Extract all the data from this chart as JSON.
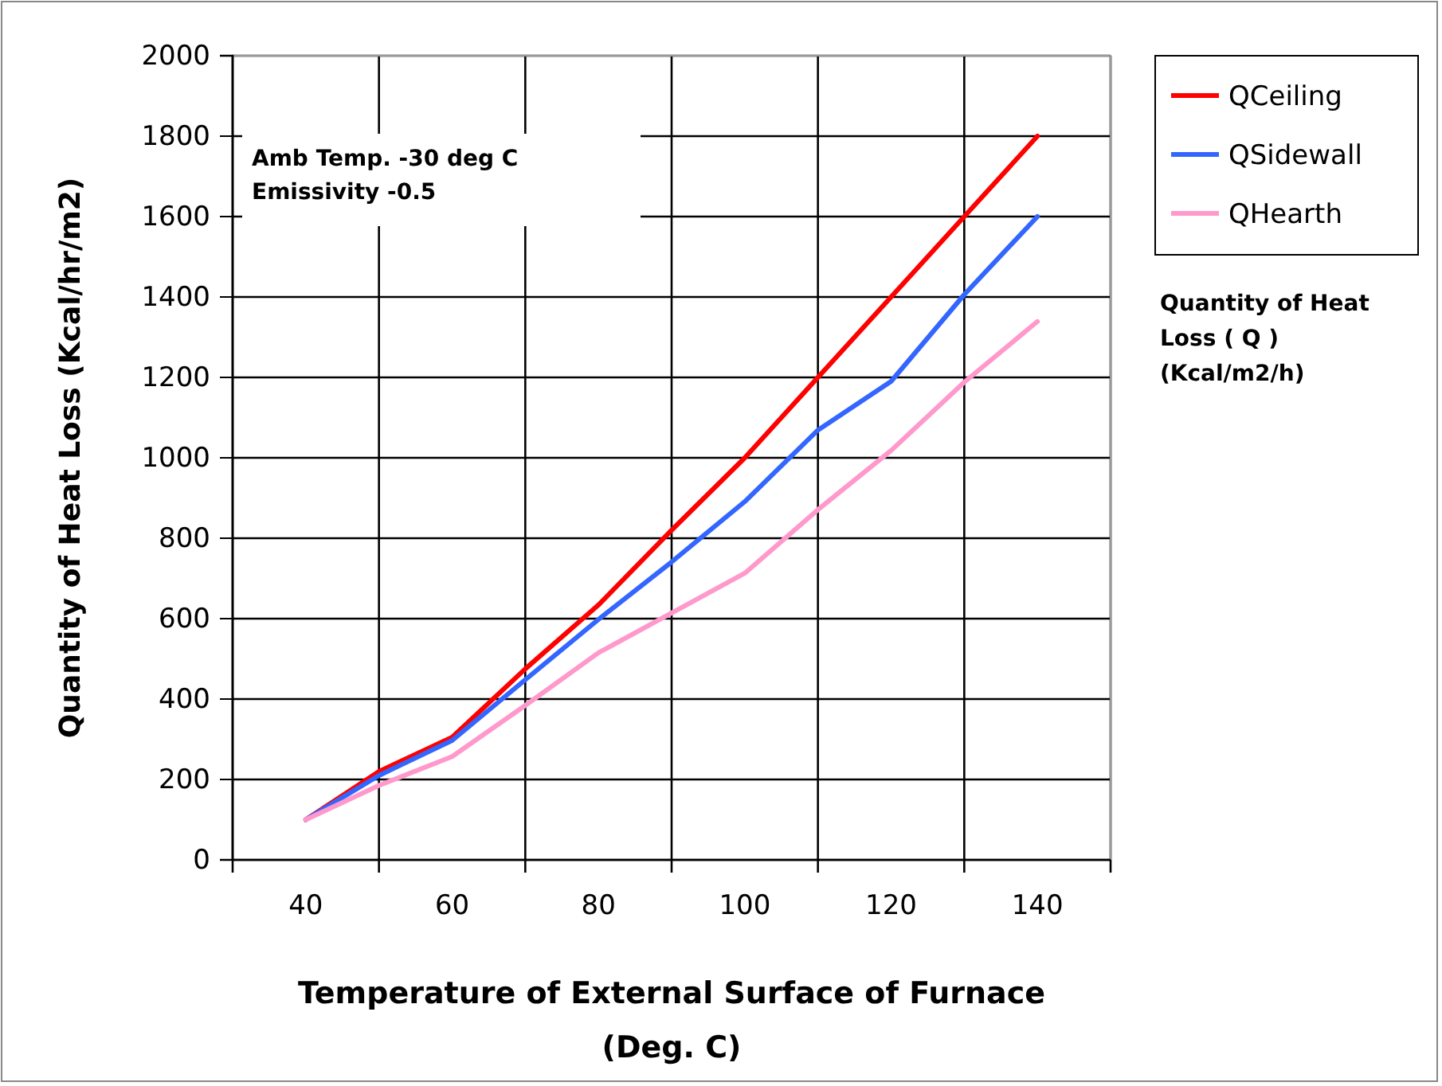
{
  "chart_data": {
    "type": "line",
    "xlabel": "Temperature of External Surface of Furnace\n(Deg. C)",
    "ylabel": "Quantity of Heat Loss (Kcal/hr/m2)",
    "x": [
      40,
      50,
      60,
      70,
      80,
      90,
      100,
      110,
      120,
      130,
      140
    ],
    "series": [
      {
        "name": "QCeiling",
        "color": "#ff0000",
        "values": [
          100,
          220,
          305,
          475,
          634,
          820,
          1000,
          1200,
          1400,
          1600,
          1800
        ]
      },
      {
        "name": "QSidewall",
        "color": "#3366ff",
        "values": [
          100,
          210,
          297,
          448,
          598,
          741,
          891,
          1069,
          1190,
          1406,
          1600
        ]
      },
      {
        "name": "QHearth",
        "color": "#ff99cc",
        "values": [
          100,
          185,
          257,
          384,
          515,
          614,
          713,
          871,
          1018,
          1188,
          1339
        ]
      }
    ],
    "xlim": [
      30,
      150
    ],
    "xticks": [
      {
        "value": 30,
        "label": null
      },
      40,
      {
        "value": 50,
        "label": null
      },
      60,
      {
        "value": 70,
        "label": null
      },
      80,
      {
        "value": 90,
        "label": null
      },
      100,
      {
        "value": 110,
        "label": null
      },
      120,
      {
        "value": 130,
        "label": null
      },
      140,
      {
        "value": 150,
        "label": null
      }
    ],
    "ylim": [
      0,
      2000
    ],
    "yticks": [
      0,
      200,
      400,
      600,
      800,
      1000,
      1200,
      1400,
      1600,
      1800,
      2000
    ],
    "grid": true,
    "legend": "top right",
    "marker": "none",
    "line_style": "solid",
    "annotations": [
      "Amb Temp. -30 deg C\nEmissivity -0.5",
      "Quantity of Heat\nLoss ( Q )\n(Kcal/m2/h)"
    ]
  }
}
